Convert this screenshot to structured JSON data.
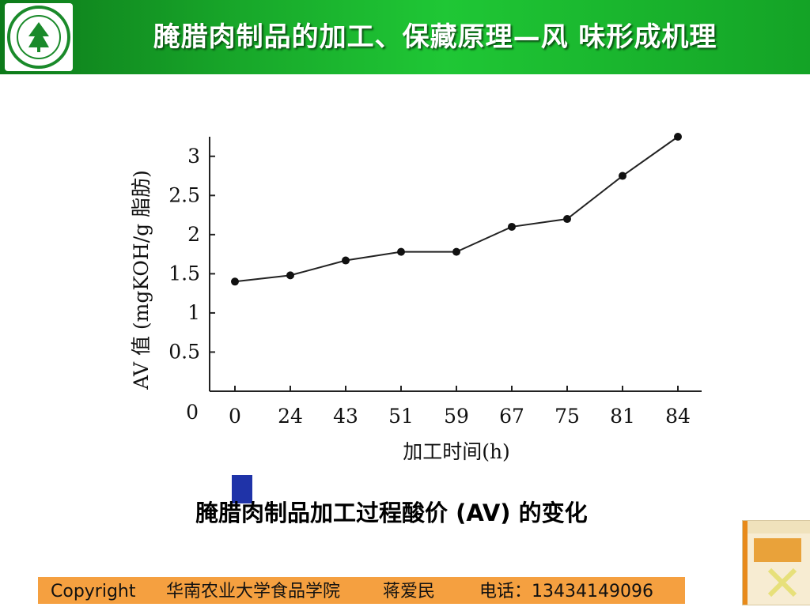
{
  "header": {
    "title": "腌腊肉制品的加工、保藏原理—风 味形成机理"
  },
  "caption": "腌腊肉制品加工过程酸价 (AV) 的变化",
  "footer": {
    "copyright": "Copyright",
    "institution": "华南农业大学食品学院",
    "person": "蒋爱民",
    "phone": "电话：13434149096"
  },
  "colors": {
    "header_green": "#18a82a",
    "footer_orange": "#f5a040",
    "accent_blue": "#1f33a8"
  },
  "chart_data": {
    "type": "line",
    "xlabel": "加工时间(h)",
    "ylabel": "AV 值 (mgKOH/g 脂肪)",
    "categories": [
      "0",
      "24",
      "43",
      "51",
      "59",
      "67",
      "75",
      "81",
      "84"
    ],
    "values": [
      1.4,
      1.48,
      1.67,
      1.78,
      1.78,
      2.1,
      2.2,
      2.75,
      3.25
    ],
    "ylim": [
      0,
      3.25
    ],
    "yticks": [
      {
        "value": 0.5,
        "label": "0.5"
      },
      {
        "value": 1,
        "label": "1"
      },
      {
        "value": 1.5,
        "label": "1.5"
      },
      {
        "value": 2,
        "label": "2"
      },
      {
        "value": 2.5,
        "label": "2.5"
      },
      {
        "value": 3,
        "label": "3"
      }
    ],
    "origin_label": "0",
    "grid": false,
    "marker": "circle"
  }
}
